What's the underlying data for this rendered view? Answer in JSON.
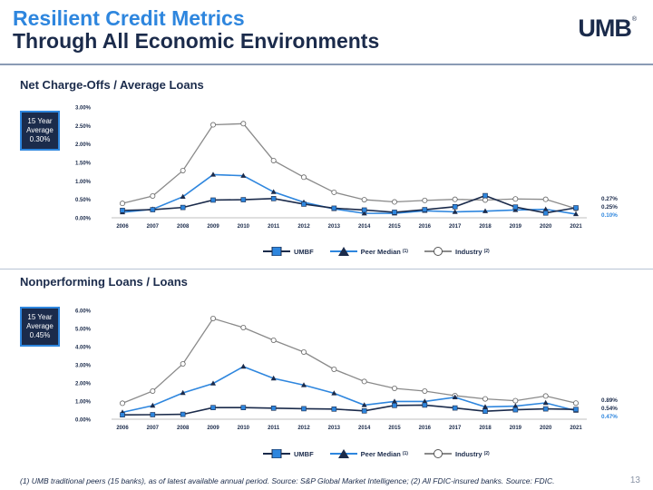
{
  "header": {
    "title_line1": "Resilient Credit Metrics",
    "title_line2": "Through All Economic Environments",
    "logo_text": "UMB",
    "logo_mark": "®"
  },
  "colors": {
    "umbf": "#1b2b4b",
    "peer": "#2e86de",
    "industry": "#8a8a8a",
    "grid": "#d9d9d9"
  },
  "chart_data": [
    {
      "type": "line",
      "title": "Net Charge-Offs / Average Loans",
      "callout": {
        "line1": "15 Year",
        "line2": "Average",
        "value": "0.30%"
      },
      "categories": [
        "2006",
        "2007",
        "2008",
        "2009",
        "2010",
        "2011",
        "2012",
        "2013",
        "2014",
        "2015",
        "2016",
        "2017",
        "2018",
        "2019",
        "2020",
        "2021"
      ],
      "ylim": [
        0,
        3.0
      ],
      "yticks": [
        "0.00%",
        "0.50%",
        "1.00%",
        "1.50%",
        "2.00%",
        "2.50%",
        "3.00%"
      ],
      "grid": false,
      "legend_position": "bottom",
      "series": [
        {
          "name": "UMBF",
          "marker": "square",
          "values": [
            0.2,
            0.22,
            0.28,
            0.48,
            0.49,
            0.52,
            0.37,
            0.26,
            0.21,
            0.15,
            0.22,
            0.3,
            0.6,
            0.29,
            0.13,
            0.27
          ]
        },
        {
          "name": "Peer Median",
          "note": "(1)",
          "marker": "triangle",
          "values": [
            0.15,
            0.23,
            0.57,
            1.17,
            1.14,
            0.7,
            0.42,
            0.24,
            0.12,
            0.12,
            0.19,
            0.16,
            0.18,
            0.21,
            0.23,
            0.1
          ]
        },
        {
          "name": "Industry",
          "note": "(2)",
          "marker": "circle",
          "values": [
            0.39,
            0.59,
            1.28,
            2.52,
            2.55,
            1.55,
            1.1,
            0.69,
            0.49,
            0.43,
            0.47,
            0.5,
            0.48,
            0.51,
            0.5,
            0.25
          ]
        }
      ],
      "end_labels": [
        "0.27%",
        "0.25%",
        "0.10%"
      ]
    },
    {
      "type": "line",
      "title": "Nonperforming Loans / Loans",
      "callout": {
        "line1": "15 Year",
        "line2": "Average",
        "value": "0.45%"
      },
      "categories": [
        "2006",
        "2007",
        "2008",
        "2009",
        "2010",
        "2011",
        "2012",
        "2013",
        "2014",
        "2015",
        "2016",
        "2017",
        "2018",
        "2019",
        "2020",
        "2021"
      ],
      "ylim": [
        0,
        6.0
      ],
      "yticks": [
        "0.00%",
        "1.00%",
        "2.00%",
        "3.00%",
        "4.00%",
        "5.00%",
        "6.00%"
      ],
      "grid": false,
      "legend_position": "bottom",
      "series": [
        {
          "name": "UMBF",
          "marker": "square",
          "values": [
            0.24,
            0.25,
            0.27,
            0.64,
            0.64,
            0.61,
            0.58,
            0.56,
            0.46,
            0.76,
            0.78,
            0.62,
            0.44,
            0.52,
            0.57,
            0.54
          ]
        },
        {
          "name": "Peer Median",
          "note": "(1)",
          "marker": "triangle",
          "values": [
            0.38,
            0.75,
            1.45,
            1.97,
            2.9,
            2.25,
            1.88,
            1.43,
            0.78,
            0.98,
            0.98,
            1.21,
            0.68,
            0.72,
            0.9,
            0.47
          ]
        },
        {
          "name": "Industry",
          "note": "(2)",
          "marker": "circle",
          "values": [
            0.88,
            1.55,
            3.05,
            5.55,
            5.05,
            4.35,
            3.7,
            2.75,
            2.08,
            1.7,
            1.55,
            1.3,
            1.12,
            1.02,
            1.28,
            0.89
          ]
        }
      ],
      "end_labels": [
        "0.89%",
        "0.54%",
        "0.47%"
      ]
    }
  ],
  "footnote": "(1) UMB traditional peers (15 banks), as of latest available annual period. Source: S&P Global Market Intelligence; (2) All FDIC-insured banks. Source: FDIC.",
  "page_number": "13"
}
